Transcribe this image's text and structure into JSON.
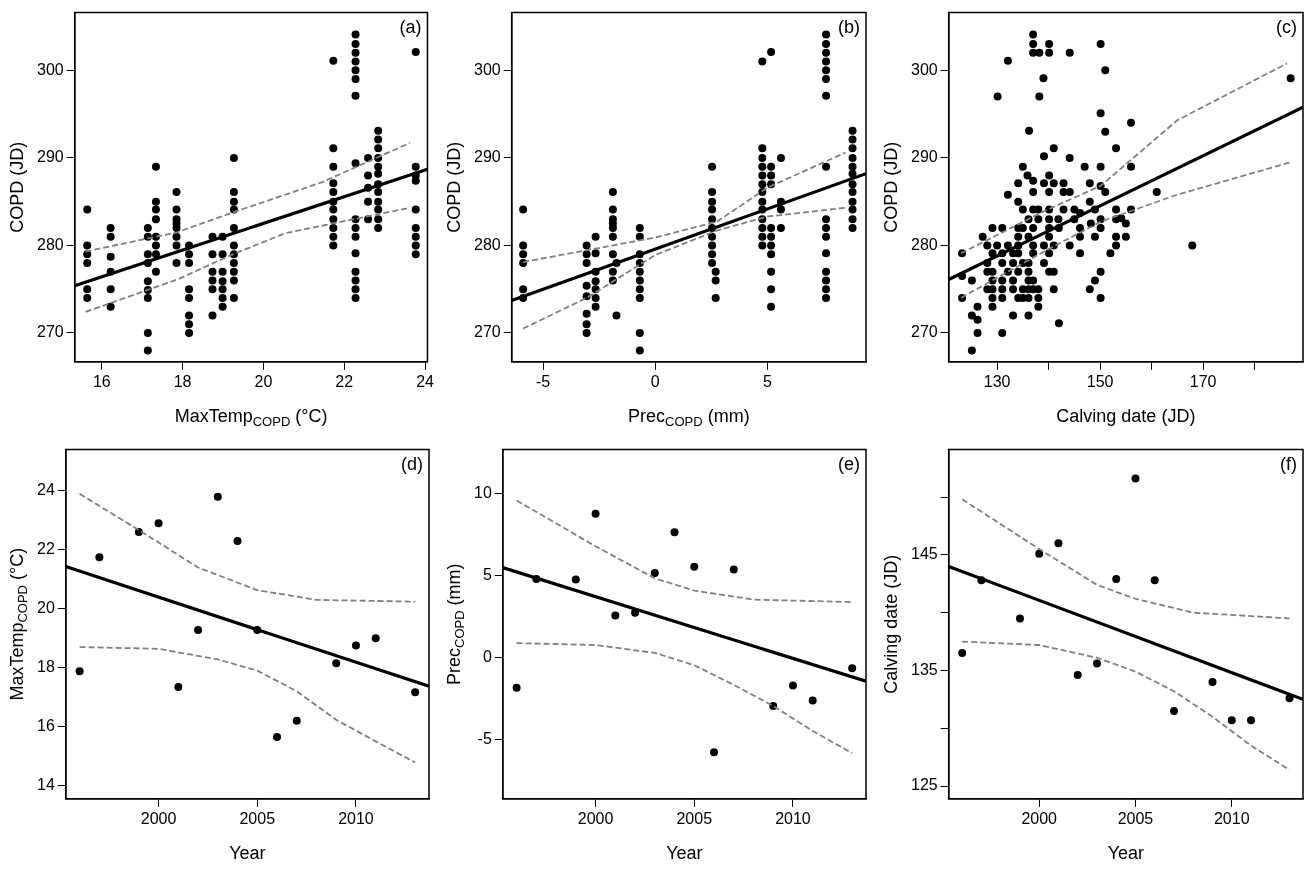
{
  "chart_data": [
    {
      "type": "scatter",
      "xlabel": "MaxTemp$_{COPD}$ (°C)",
      "ylabel": "COPD (JD)",
      "annotations": [
        "(a)"
      ],
      "xlim": [
        15.33,
        24.06
      ],
      "ylim": [
        266.7,
        306.6
      ],
      "xticks": [
        16,
        18,
        20,
        22,
        24
      ],
      "yticks": [
        270,
        280,
        290,
        300
      ],
      "series": [
        {
          "type": "scatter",
          "marker": "circle",
          "color": "#000000",
          "x": [
            15.64,
            15.64,
            15.64,
            15.64,
            15.64,
            15.64,
            16.22,
            16.22,
            16.22,
            16.22,
            16.22,
            16.22,
            17.14,
            17.14,
            17.14,
            17.14,
            17.14,
            17.14,
            17.14,
            17.14,
            17.14,
            17.34,
            17.34,
            17.34,
            17.34,
            17.34,
            17.34,
            17.34,
            17.34,
            17.85,
            17.85,
            17.85,
            17.85,
            17.85,
            17.85,
            17.85,
            17.85,
            18.16,
            18.16,
            18.16,
            18.16,
            18.16,
            18.16,
            18.16,
            18.16,
            18.74,
            18.74,
            18.74,
            18.74,
            18.74,
            18.74,
            18.99,
            18.99,
            18.99,
            18.99,
            18.99,
            18.99,
            18.99,
            19.27,
            19.27,
            19.27,
            19.27,
            19.27,
            19.27,
            19.27,
            19.27,
            19.27,
            19.27,
            19.27,
            21.73,
            21.73,
            21.73,
            21.73,
            21.73,
            21.73,
            21.73,
            21.73,
            21.73,
            21.73,
            21.73,
            22.28,
            22.28,
            22.28,
            22.28,
            22.28,
            22.28,
            22.28,
            22.28,
            22.28,
            22.28,
            22.28,
            22.28,
            22.28,
            22.28,
            22.28,
            22.28,
            22.59,
            22.59,
            22.59,
            22.59,
            22.59,
            22.84,
            22.84,
            22.84,
            22.84,
            22.84,
            22.84,
            22.84,
            22.84,
            22.84,
            22.84,
            22.84,
            22.84,
            23.77,
            23.77,
            23.77,
            23.77,
            23.77,
            23.77,
            23.77,
            23.77,
            23.77
          ],
          "values": [
            284.1,
            280,
            279,
            278,
            275,
            274,
            282,
            281,
            278.7,
            277,
            275,
            273,
            282,
            281,
            279,
            278,
            275.9,
            274.9,
            274,
            270,
            268,
            289,
            285,
            284.1,
            283,
            281,
            280,
            279,
            277,
            286.1,
            284.1,
            283,
            282.5,
            282,
            281,
            280,
            278,
            280,
            279,
            278,
            275,
            274,
            272,
            271,
            270,
            281,
            279,
            277,
            276,
            275,
            272,
            281,
            279,
            277,
            275.9,
            275,
            274,
            273,
            290,
            286.1,
            285,
            284.1,
            282,
            280,
            279,
            278,
            277,
            276,
            274,
            301.1,
            291.1,
            289,
            287.1,
            286.1,
            285,
            284.1,
            283,
            282,
            281,
            280,
            304.1,
            303,
            302,
            301,
            300,
            299,
            297.1,
            289.4,
            283,
            282,
            281,
            279.1,
            277,
            276,
            275,
            274,
            290,
            288,
            286.6,
            285,
            283,
            293.1,
            292.1,
            291.1,
            290,
            289,
            288.2,
            287,
            286.1,
            285,
            284.1,
            283,
            282,
            302.1,
            289,
            288,
            287.4,
            284.1,
            282,
            281,
            280,
            279
          ]
        },
        {
          "type": "line",
          "marker": "none",
          "line_style": "solid",
          "color": "#000000",
          "x": [
            15.33,
            24.06
          ],
          "values": [
            275.4,
            288.7
          ]
        },
        {
          "type": "line",
          "marker": "none",
          "line_style": "dashed",
          "color": "#808080",
          "x": [
            15.6,
            17.87,
            19.2,
            21.44,
            23.62
          ],
          "values": [
            279.3,
            281.5,
            283.7,
            287.2,
            291.7
          ]
        },
        {
          "type": "line",
          "marker": "none",
          "line_style": "dashed",
          "color": "#808080",
          "x": [
            15.6,
            17.87,
            19.2,
            20.55,
            23.62
          ],
          "values": [
            272.4,
            276.1,
            278.9,
            281.4,
            284.3
          ]
        }
      ]
    },
    {
      "type": "scatter",
      "xlabel": "Prec$_{COPD}$ (mm)",
      "ylabel": "COPD (JD)",
      "annotations": [
        "(b)"
      ],
      "xlim": [
        -6.4,
        9.39
      ],
      "ylim": [
        266.7,
        306.6
      ],
      "xticks": [
        -5,
        0,
        5
      ],
      "yticks": [
        270,
        280,
        290,
        300
      ],
      "series": [
        {
          "type": "scatter",
          "marker": "circle",
          "color": "#000000",
          "x": [
            -5.89,
            -5.89,
            -5.89,
            -5.89,
            -5.89,
            -5.89,
            -3.06,
            -3.06,
            -3.06,
            -3.06,
            -3.06,
            -3.06,
            -3.06,
            -3.06,
            -2.66,
            -2.66,
            -2.66,
            -2.66,
            -2.66,
            -2.66,
            -2.66,
            -1.89,
            -1.89,
            -1.89,
            -1.89,
            -1.89,
            -1.89,
            -1.89,
            -1.89,
            -1.89,
            -1.73,
            -1.73,
            -0.69,
            -0.69,
            -0.69,
            -0.69,
            -0.69,
            -0.69,
            -0.69,
            -0.69,
            -0.69,
            -0.69,
            2.53,
            2.53,
            2.53,
            2.53,
            2.53,
            2.53,
            2.53,
            2.53,
            2.53,
            2.53,
            2.69,
            2.69,
            2.69,
            4.77,
            4.77,
            4.77,
            4.77,
            4.77,
            4.77,
            4.77,
            4.77,
            4.77,
            4.77,
            4.77,
            4.77,
            4.77,
            5.16,
            5.16,
            5.16,
            5.16,
            5.16,
            5.16,
            5.16,
            5.16,
            5.16,
            5.16,
            5.16,
            5.6,
            5.6,
            5.6,
            5.6,
            7.61,
            7.61,
            7.61,
            7.61,
            7.61,
            7.61,
            7.61,
            7.61,
            7.61,
            7.61,
            7.61,
            7.61,
            7.61,
            7.61,
            7.61,
            7.61,
            8.79,
            8.79,
            8.79,
            8.79,
            8.79,
            8.79,
            8.79,
            8.79,
            8.79,
            8.79,
            8.79,
            8.79
          ],
          "values": [
            284.1,
            280,
            279,
            278,
            275,
            274,
            280,
            279,
            278,
            275.4,
            274.2,
            272.2,
            271,
            270,
            281,
            279.1,
            277,
            275.9,
            275,
            274,
            273,
            286.1,
            284.1,
            283,
            282.5,
            282,
            281,
            279,
            277,
            276,
            278,
            272,
            282,
            281,
            279,
            278,
            277,
            276,
            275,
            274,
            270,
            268,
            289,
            286.1,
            285,
            284.1,
            283,
            282,
            281,
            280,
            279,
            278,
            277,
            276,
            274,
            301,
            291.1,
            290,
            289,
            288,
            287,
            286.1,
            285,
            284.1,
            283,
            282,
            281,
            280,
            302.1,
            289,
            288,
            287,
            282,
            281,
            280,
            279,
            277,
            275,
            273,
            290,
            285,
            284.1,
            282,
            304.1,
            303,
            302,
            301,
            300,
            299,
            297.1,
            289,
            283,
            282,
            281,
            279.1,
            277,
            276,
            275,
            274,
            293.1,
            292.1,
            291.1,
            290,
            289,
            288.2,
            287,
            286.1,
            285,
            284.1,
            283,
            282
          ]
        },
        {
          "type": "line",
          "marker": "none",
          "line_style": "solid",
          "color": "#000000",
          "x": [
            -6.4,
            9.39
          ],
          "values": [
            273.7,
            288.2
          ]
        },
        {
          "type": "line",
          "marker": "none",
          "line_style": "dashed",
          "color": "#808080",
          "x": [
            -5.89,
            0,
            2.74,
            5,
            8.47
          ],
          "values": [
            278.1,
            280.9,
            282.7,
            286.6,
            290.6
          ]
        },
        {
          "type": "line",
          "marker": "none",
          "line_style": "dashed",
          "color": "#808080",
          "x": [
            -5.89,
            -3.06,
            0,
            2.74,
            5,
            8.47
          ],
          "values": [
            270.5,
            274.0,
            278.9,
            281.7,
            283.3,
            284.3
          ]
        }
      ]
    },
    {
      "type": "scatter",
      "xlabel": "Calving date (JD)",
      "ylabel": "COPD (JD)",
      "annotations": [
        "(c)"
      ],
      "xlim": [
        120.6,
        189.4
      ],
      "ylim": [
        266.7,
        306.6
      ],
      "xticks": [
        130,
        {
          "value": 140,
          "label": null
        },
        150,
        {
          "value": 160,
          "label": null
        },
        170,
        {
          "value": 180,
          "label": null
        }
      ],
      "yticks": [
        270,
        280,
        290,
        300
      ],
      "series": [
        {
          "type": "scatter",
          "marker": "circle",
          "color": "#000000",
          "x": [
            137.0,
            137.0,
            137.0,
            138.2,
            140.1,
            140.1,
            144.1,
            150.1,
            132.1,
            151.0,
            139.0,
            130.1,
            138.2,
            150.1,
            136.2,
            151.0,
            156.0,
            139.1,
            141.0,
            144.1,
            147.0,
            150.1,
            153.1,
            156.0,
            135.0,
            132.1,
            161.0,
            167.9,
            187.0,
            142.0,
            134.1,
            135.9,
            137.0,
            139.1,
            140.1,
            141.0,
            142.9,
            144.1,
            148.0,
            150.1,
            151.0,
            134.1,
            137.0,
            140.1,
            142.9,
            148.0,
            135.0,
            137.0,
            138.0,
            140.1,
            142.9,
            145.0,
            146.1,
            149.0,
            153.1,
            154.1,
            156.0,
            136.1,
            138.0,
            140.1,
            141.9,
            145.0,
            148.2,
            150.1,
            153.1,
            155.0,
            134.1,
            135.0,
            137.0,
            140.1,
            142.0,
            146.1,
            150.1,
            127.2,
            129.1,
            131.0,
            134.1,
            136.1,
            140.1,
            146.1,
            149.0,
            153.1,
            155.0,
            128.1,
            130.0,
            132.1,
            134.1,
            137.0,
            139.1,
            141.0,
            144.1,
            153.1,
            123.2,
            129.1,
            131.0,
            133.1,
            134.1,
            137.0,
            140.1,
            146.1,
            152.0,
            128.1,
            131.0,
            133.1,
            135.0,
            136.1,
            139.1,
            128.1,
            129.1,
            132.1,
            134.1,
            136.1,
            140.1,
            141.0,
            150.1,
            123.2,
            125.1,
            129.1,
            131.0,
            133.1,
            136.1,
            137.0,
            149.0,
            128.1,
            129.1,
            131.0,
            133.1,
            135.0,
            136.1,
            137.0,
            138.0,
            141.0,
            148.0,
            123.2,
            129.1,
            131.0,
            134.1,
            135.0,
            136.1,
            138.0,
            150.1,
            126.2,
            129.1,
            138.0,
            125.1,
            126.2,
            133.1,
            136.1,
            126.2,
            131.0,
            125.1
          ],
          "values": [
            304.1,
            303.0,
            302.0,
            302.0,
            303.0,
            302.0,
            302.0,
            303.0,
            301.1,
            300.0,
            299.1,
            297.0,
            297.0,
            295.1,
            293.1,
            293.0,
            294.0,
            290.2,
            291.1,
            290.0,
            289.0,
            289.0,
            291.1,
            289.0,
            289.0,
            285.8,
            286.1,
            280.0,
            299.1,
            271.1,
            287.1,
            288.0,
            287.4,
            287.1,
            288.0,
            287.1,
            287.1,
            286.1,
            287.1,
            286.8,
            286.1,
            285.0,
            286.1,
            286.1,
            286.1,
            285.0,
            284.1,
            284.1,
            284.1,
            284.1,
            284.1,
            284.1,
            283.7,
            284.1,
            284.1,
            283.1,
            284.1,
            283.0,
            283.0,
            283.0,
            283.0,
            283.0,
            282.5,
            283.0,
            283.0,
            282.5,
            282.0,
            282.0,
            282.0,
            282.0,
            282.0,
            282.0,
            282.0,
            281.0,
            282.0,
            282.0,
            281.0,
            281.0,
            281.0,
            281.0,
            281.0,
            281.0,
            281.0,
            280.0,
            280.0,
            280.0,
            280.0,
            280.0,
            280.0,
            280.0,
            280.0,
            280.0,
            279.1,
            279.1,
            279.1,
            279.1,
            279.1,
            279.1,
            279.1,
            279.1,
            279.1,
            278.0,
            278.0,
            278.0,
            278.0,
            278.0,
            278.0,
            277.0,
            277.0,
            277.0,
            277.0,
            277.0,
            277.0,
            277.0,
            277.0,
            276.5,
            276.0,
            276.0,
            276.0,
            276.0,
            276.0,
            276.0,
            276.0,
            275.0,
            275.0,
            275.0,
            275.0,
            275.0,
            275.0,
            275.0,
            275.0,
            275.0,
            275.0,
            274.0,
            274.0,
            274.0,
            274.0,
            274.0,
            274.0,
            274.0,
            274.0,
            273.0,
            273.0,
            273.0,
            272.0,
            271.5,
            272.0,
            272.0,
            270.0,
            270.0,
            268.0
          ]
        },
        {
          "type": "line",
          "marker": "none",
          "line_style": "solid",
          "color": "#000000",
          "x": [
            120.6,
            189.4
          ],
          "values": [
            276.1,
            295.8
          ]
        },
        {
          "type": "line",
          "marker": "none",
          "line_style": "dashed",
          "color": "#808080",
          "x": [
            123.0,
            139.1,
            150.1,
            165,
            186.3
          ],
          "values": [
            279.1,
            283.9,
            286.8,
            294.3,
            300.8
          ]
        },
        {
          "type": "line",
          "marker": "none",
          "line_style": "dashed",
          "color": "#808080",
          "x": [
            123.0,
            139.1,
            150.1,
            165,
            187
          ],
          "values": [
            274.0,
            279.3,
            282.7,
            285.8,
            289.5
          ]
        }
      ]
    },
    {
      "type": "scatter",
      "xlabel": "Year",
      "ylabel": "MaxTemp$_{COPD}$ (°C)",
      "annotations": [
        "(d)"
      ],
      "xlim": [
        1995.3,
        2013.7
      ],
      "ylim": [
        13.55,
        25.4
      ],
      "xticks": [
        2000,
        2005,
        2010
      ],
      "yticks": [
        14,
        16,
        18,
        20,
        22,
        24
      ],
      "series": [
        {
          "type": "scatter",
          "marker": "circle",
          "color": "#000000",
          "x": [
            1996,
            1997,
            1999,
            2000,
            2001,
            2002,
            2003,
            2004,
            2005,
            2006,
            2007,
            2009,
            2010,
            2011,
            2013
          ],
          "values": [
            17.88,
            21.75,
            22.6,
            22.9,
            17.34,
            19.28,
            23.8,
            22.3,
            19.28,
            15.65,
            16.2,
            18.15,
            18.75,
            19.0,
            17.17
          ]
        },
        {
          "type": "line",
          "marker": "none",
          "line_style": "solid",
          "color": "#000000",
          "x": [
            1995.3,
            2013.7
          ],
          "values": [
            21.43,
            17.37
          ]
        },
        {
          "type": "line",
          "marker": "none",
          "line_style": "dashed",
          "color": "#808080",
          "x": [
            1996,
            1999,
            2002,
            2005,
            2008,
            2013
          ],
          "values": [
            23.9,
            22.67,
            21.4,
            20.63,
            20.3,
            20.24
          ]
        },
        {
          "type": "line",
          "marker": "none",
          "line_style": "dashed",
          "color": "#808080",
          "x": [
            1996,
            2000,
            2003,
            2005,
            2007,
            2009,
            2011,
            2013
          ],
          "values": [
            18.7,
            18.64,
            18.28,
            17.9,
            17.2,
            16.23,
            15.5,
            14.78
          ]
        }
      ]
    },
    {
      "type": "scatter",
      "xlabel": "Year",
      "ylabel": "Prec$_{COPD}$ (mm)",
      "annotations": [
        "(e)"
      ],
      "xlim": [
        1995.3,
        2013.7
      ],
      "ylim": [
        -8.6,
        12.7
      ],
      "xticks": [
        2000,
        2005,
        2010
      ],
      "yticks": [
        -5,
        0,
        5,
        10
      ],
      "series": [
        {
          "type": "scatter",
          "marker": "circle",
          "color": "#000000",
          "x": [
            1996,
            1997,
            1999,
            2000,
            2001,
            2002,
            2003,
            2004,
            2005,
            2006,
            2007,
            2009,
            2010,
            2011,
            2013
          ],
          "values": [
            -1.82,
            4.8,
            4.78,
            8.79,
            2.58,
            2.75,
            5.17,
            7.66,
            5.56,
            -5.76,
            5.39,
            -2.94,
            -1.69,
            -2.6,
            -0.63
          ]
        },
        {
          "type": "line",
          "marker": "none",
          "line_style": "solid",
          "color": "#000000",
          "x": [
            1995.3,
            2013.7
          ],
          "values": [
            5.5,
            -1.43
          ]
        },
        {
          "type": "line",
          "marker": "none",
          "line_style": "dashed",
          "color": "#808080",
          "x": [
            1996,
            2000,
            2003,
            2005,
            2008,
            2013
          ],
          "values": [
            9.6,
            6.8,
            4.85,
            4.1,
            3.55,
            3.4
          ]
        },
        {
          "type": "line",
          "marker": "none",
          "line_style": "dashed",
          "color": "#808080",
          "x": [
            1996,
            2000,
            2003,
            2005,
            2007,
            2009,
            2011,
            2013
          ],
          "values": [
            0.9,
            0.78,
            0.3,
            -0.45,
            -1.65,
            -2.94,
            -4.46,
            -5.82
          ]
        }
      ]
    },
    {
      "type": "scatter",
      "xlabel": "Year",
      "ylabel": "Calving date (JD)",
      "annotations": [
        "(f)"
      ],
      "xlim": [
        1995.3,
        2013.7
      ],
      "ylim": [
        123.9,
        154.1
      ],
      "xticks": [
        2000,
        2005,
        2010
      ],
      "yticks": [
        125,
        {
          "value": 130,
          "label": null
        },
        135,
        {
          "value": 140,
          "label": null
        },
        145,
        {
          "value": 150,
          "label": null
        }
      ],
      "series": [
        {
          "type": "scatter",
          "marker": "circle",
          "color": "#000000",
          "x": [
            1996,
            1997,
            1999,
            2000,
            2001,
            2002,
            2003,
            2004,
            2005,
            2006,
            2007,
            2009,
            2010,
            2011,
            2013
          ],
          "values": [
            136.5,
            142.8,
            139.5,
            145.1,
            146.0,
            134.6,
            135.6,
            142.9,
            151.6,
            142.8,
            131.5,
            134.0,
            130.7,
            130.7,
            132.6
          ]
        },
        {
          "type": "line",
          "marker": "none",
          "line_style": "solid",
          "color": "#000000",
          "x": [
            1995.3,
            2013.7
          ],
          "values": [
            144.0,
            132.5
          ]
        },
        {
          "type": "line",
          "marker": "none",
          "line_style": "dashed",
          "color": "#808080",
          "x": [
            1996,
            2000,
            2003,
            2005,
            2008,
            2013
          ],
          "values": [
            149.8,
            145.5,
            142.4,
            141.2,
            140.0,
            139.5
          ]
        },
        {
          "type": "line",
          "marker": "none",
          "line_style": "dashed",
          "color": "#808080",
          "x": [
            1996,
            2000,
            2003,
            2005,
            2007,
            2009,
            2011,
            2013
          ],
          "values": [
            137.5,
            137.2,
            136.1,
            134.9,
            133.2,
            131.0,
            128.5,
            126.4
          ]
        }
      ]
    }
  ]
}
